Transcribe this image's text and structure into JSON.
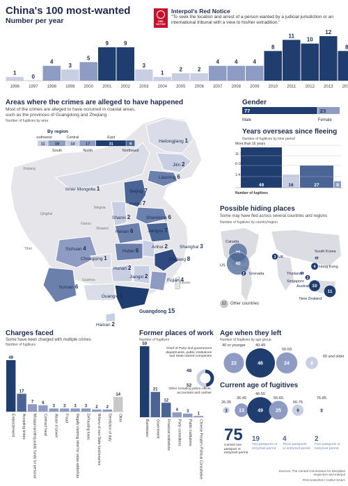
{
  "header": {
    "title": "China's 100 most-wanted",
    "subtitle": "Number per year",
    "notice_title": "Interpol's Red Notice",
    "notice_text": "\"To seek the location and arrest of a person wanted by a judicial jurisdiction or an international tribunal with a view to his/her extradition.\"",
    "badge_text": "RED NOTICE"
  },
  "colors": {
    "dark": "#1f3d6e",
    "mid": "#4a6496",
    "light": "#8e9cc4",
    "pale": "#c9cfe3",
    "grey": "#c8c8c8",
    "red": "#c8102e"
  },
  "chart_data": [
    {
      "type": "bar",
      "id": "per_year",
      "title": "Number per year",
      "categories": [
        "1996",
        "1997",
        "1998",
        "1999",
        "2000",
        "2001",
        "2002",
        "2003",
        "2004",
        "2005",
        "2006",
        "2007",
        "2008",
        "2009",
        "2010",
        "2011",
        "2012",
        "2013",
        "2014"
      ],
      "values": [
        1,
        0,
        4,
        3,
        5,
        9,
        9,
        3,
        1,
        2,
        2,
        4,
        4,
        4,
        8,
        11,
        10,
        12,
        8
      ],
      "ylim": [
        0,
        12
      ]
    },
    {
      "type": "bar",
      "id": "gender",
      "title": "Gender",
      "categories": [
        "Male",
        "Female"
      ],
      "values": [
        77,
        23
      ]
    },
    {
      "type": "bar",
      "id": "years_overseas",
      "title": "Years overseas since fleeing",
      "subtitle": "Number of fugitives by time period",
      "categories": [
        "1-4",
        "6-10",
        "11-15",
        "More than 16 years"
      ],
      "values": [
        49,
        16,
        27,
        8
      ],
      "xlabel": "Number of fugitives"
    },
    {
      "type": "bar",
      "id": "by_region",
      "title": "By region",
      "categories": [
        "Southwest",
        "South",
        "Central",
        "North",
        "East",
        "Northeast"
      ],
      "values": [
        11,
        18,
        14,
        17,
        31,
        9
      ]
    },
    {
      "type": "bar",
      "id": "charges",
      "title": "Charges faced",
      "subtitle": "Some have been charged with multiple crimes",
      "ylabel": "Number of fugitives",
      "categories": [
        "Embezzlement",
        "Accepting bribes",
        "Misappropriating public funds for personal use",
        "Contract fraud",
        "Abuse of power",
        "Fraud",
        "Illegally claiming relief for value-added tax",
        "Defrauding loans",
        "Bribery of non-State functionaries",
        "Dereliction of duty",
        "Other"
      ],
      "values": [
        49,
        17,
        7,
        6,
        3,
        3,
        3,
        3,
        2,
        2,
        14
      ]
    },
    {
      "type": "bar",
      "id": "workplaces",
      "title": "Former places of work",
      "ylabel": "Number of fugitives",
      "categories": [
        "Businesses",
        "Government",
        "Financial institutions",
        "Party committees",
        "Public institutions",
        "Chinese People's Political Consultative Conference"
      ],
      "values": [
        59,
        21,
        12,
        4,
        3,
        1
      ]
    },
    {
      "type": "pie",
      "id": "gov_split",
      "labels": [
        "Chief of Party and government departments, public institutions and State-owned companies",
        "Other including police officer, accountant and cashier"
      ],
      "values": [
        48,
        52
      ]
    },
    {
      "type": "scatter",
      "id": "age_left",
      "title": "Age when they left",
      "subtitle": "Number of fugitives by age group",
      "categories": [
        "40 or younger",
        "40-49",
        "50-59",
        "60 and older"
      ],
      "values": [
        22,
        46,
        24,
        8
      ]
    },
    {
      "type": "scatter",
      "id": "age_current",
      "title": "Current age of fugitives",
      "categories": [
        "26-35",
        "36-45",
        "46-55",
        "56-65",
        "66-75",
        "76-85"
      ],
      "values": [
        3,
        13,
        49,
        25,
        9,
        1
      ]
    }
  ],
  "regions": {
    "title": "Areas where the crimes are alleged to have happened",
    "subtitle": "Most of the crimes are alleged to have occurred in coastal areas, such as the provinces of Guangdong and Zhejiang",
    "note": "Number of fugitives by area",
    "provinces": [
      {
        "name": "Heilongjiang",
        "value": "1"
      },
      {
        "name": "Jilin",
        "value": "2"
      },
      {
        "name": "Liaoning",
        "value": "6"
      },
      {
        "name": "Inner Mongolia",
        "value": "1"
      },
      {
        "name": "Beijing",
        "value": "7"
      },
      {
        "name": "Hebei",
        "value": "7"
      },
      {
        "name": "Tianjin",
        "value": ""
      },
      {
        "name": "Shanxi",
        "value": "2"
      },
      {
        "name": "Shandong",
        "value": "6"
      },
      {
        "name": "Henan",
        "value": "6"
      },
      {
        "name": "Jiangsu",
        "value": "7"
      },
      {
        "name": "Shanghai",
        "value": "3"
      },
      {
        "name": "Anhui",
        "value": "2"
      },
      {
        "name": "Sichuan",
        "value": "4"
      },
      {
        "name": "Hubei",
        "value": "6"
      },
      {
        "name": "Zhejiang",
        "value": "8"
      },
      {
        "name": "Chongqing",
        "value": "1"
      },
      {
        "name": "Hunan",
        "value": "2"
      },
      {
        "name": "Jiangxi",
        "value": "2"
      },
      {
        "name": "Fujian",
        "value": "4"
      },
      {
        "name": "Yunnan",
        "value": "6"
      },
      {
        "name": "Guangxi",
        "value": "1"
      },
      {
        "name": "Guangdong",
        "value": "15"
      },
      {
        "name": "Hainan",
        "value": "2"
      }
    ],
    "unlabeled": [
      "Xinjiang",
      "Qinghai",
      "Tibet",
      "Ningxia",
      "Gansu",
      "Shaanxi",
      "Guizhou",
      "Taiwan"
    ]
  },
  "hiding": {
    "title": "Possible hiding places",
    "subtitle": "Some may have fled across several countries and regions",
    "note": "Number of fugitives by country/region",
    "places": [
      {
        "name": "Canada",
        "value": "26"
      },
      {
        "name": "US",
        "value": "40"
      },
      {
        "name": "Grenada",
        "value": "2"
      },
      {
        "name": "UK",
        "value": "3"
      },
      {
        "name": "South Korea",
        "value": "1"
      },
      {
        "name": "Hong Kong",
        "value": "4"
      },
      {
        "name": "Thailand",
        "value": "1"
      },
      {
        "name": "Singapore",
        "value": "2"
      },
      {
        "name": "Australia",
        "value": "10"
      },
      {
        "name": "New Zealand",
        "value": "11"
      }
    ],
    "other_value": "12",
    "other_label": "Other countries"
  },
  "passports": {
    "big_value": "75",
    "big_text": "Carried one passport or entry/exit permit",
    "items": [
      {
        "value": "19",
        "text": "Two passports or entry/exit permit"
      },
      {
        "value": "4",
        "text": "Three passports or entry/exit permit"
      },
      {
        "value": "2",
        "text": "Five passports or entry/exit permit"
      }
    ]
  },
  "footer": {
    "sources": "Sources: The Central Commission for Discipline Inspection and Interpol",
    "credit": "PAN SABARIS / CHINA DAILY"
  }
}
